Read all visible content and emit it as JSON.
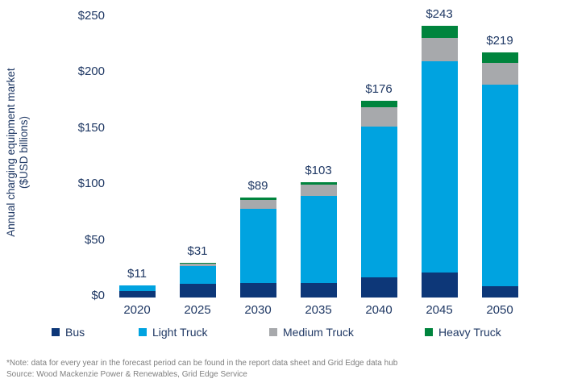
{
  "chart_data": {
    "type": "bar",
    "stacked": true,
    "ylabel_line1": "Annual charging equipment market",
    "ylabel_line2": "($USD billions)",
    "categories": [
      "2020",
      "2025",
      "2030",
      "2035",
      "2040",
      "2045",
      "2050"
    ],
    "series": [
      {
        "name": "Bus",
        "color": "#0d3778",
        "values": [
          6,
          12,
          13,
          13,
          18,
          22,
          10
        ]
      },
      {
        "name": "Light Truck",
        "color": "#00a3e0",
        "values": [
          5,
          16,
          66,
          78,
          135,
          189,
          180
        ]
      },
      {
        "name": "Medium Truck",
        "color": "#a7a9ac",
        "values": [
          0,
          2,
          8,
          10,
          17,
          21,
          20
        ]
      },
      {
        "name": "Heavy Truck",
        "color": "#00843d",
        "values": [
          0,
          1,
          2,
          2,
          6,
          11,
          9
        ]
      }
    ],
    "totals": [
      11,
      31,
      89,
      103,
      176,
      243,
      219
    ],
    "total_labels": [
      "$11",
      "$31",
      "$89",
      "$103",
      "$176",
      "$243",
      "$219"
    ],
    "y_ticks": [
      {
        "value": 0,
        "label": "$0"
      },
      {
        "value": 50,
        "label": "$50"
      },
      {
        "value": 100,
        "label": "$100"
      },
      {
        "value": 150,
        "label": "$150"
      },
      {
        "value": 200,
        "label": "$200"
      },
      {
        "value": 250,
        "label": "$250"
      }
    ],
    "ylim": [
      0,
      250
    ],
    "grid": false,
    "legend_position": "bottom"
  },
  "legend": {
    "items": [
      "Bus",
      "Light Truck",
      "Medium Truck",
      "Heavy Truck"
    ]
  },
  "footnote": {
    "line1": "*Note: data for every year in the forecast period can be found in the report data sheet and Grid Edge data hub",
    "line2": "Source: Wood Mackenzie Power & Renewables, Grid Edge Service"
  },
  "colors": {
    "text_navy": "#1f3864",
    "bus": "#0d3778",
    "light_truck": "#00a3e0",
    "medium_truck": "#a7a9ac",
    "heavy_truck": "#00843d",
    "footnote_gray": "#7f7f7f",
    "background": "#ffffff"
  }
}
